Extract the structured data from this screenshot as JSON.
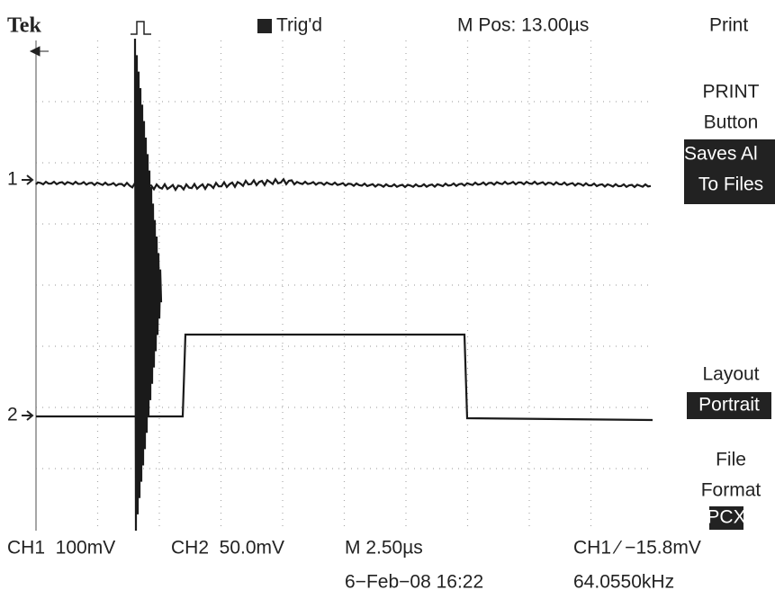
{
  "header": {
    "brand": "Tek",
    "trigger_status": "Trig'd",
    "position": "M Pos: 13.00µs",
    "menu_title": "Print"
  },
  "menu": {
    "print_lines": [
      "PRINT",
      "Button"
    ],
    "save_lines": [
      "Saves Al",
      "To Files"
    ],
    "layout_label": "Layout",
    "layout_value": "Portrait",
    "format_lines": [
      "File",
      "Format"
    ],
    "format_value": "PCX"
  },
  "channels": {
    "ch1_marker": "1",
    "ch2_marker": "2"
  },
  "footer": {
    "ch1": "CH1  100mV",
    "ch2": "CH2  50.0mV",
    "timebase": "M 2.50µs",
    "trigger": "CH1 ⁄ −15.8mV",
    "date": "6−Feb−08 16:22",
    "frequency": "64.0550kHz"
  }
}
